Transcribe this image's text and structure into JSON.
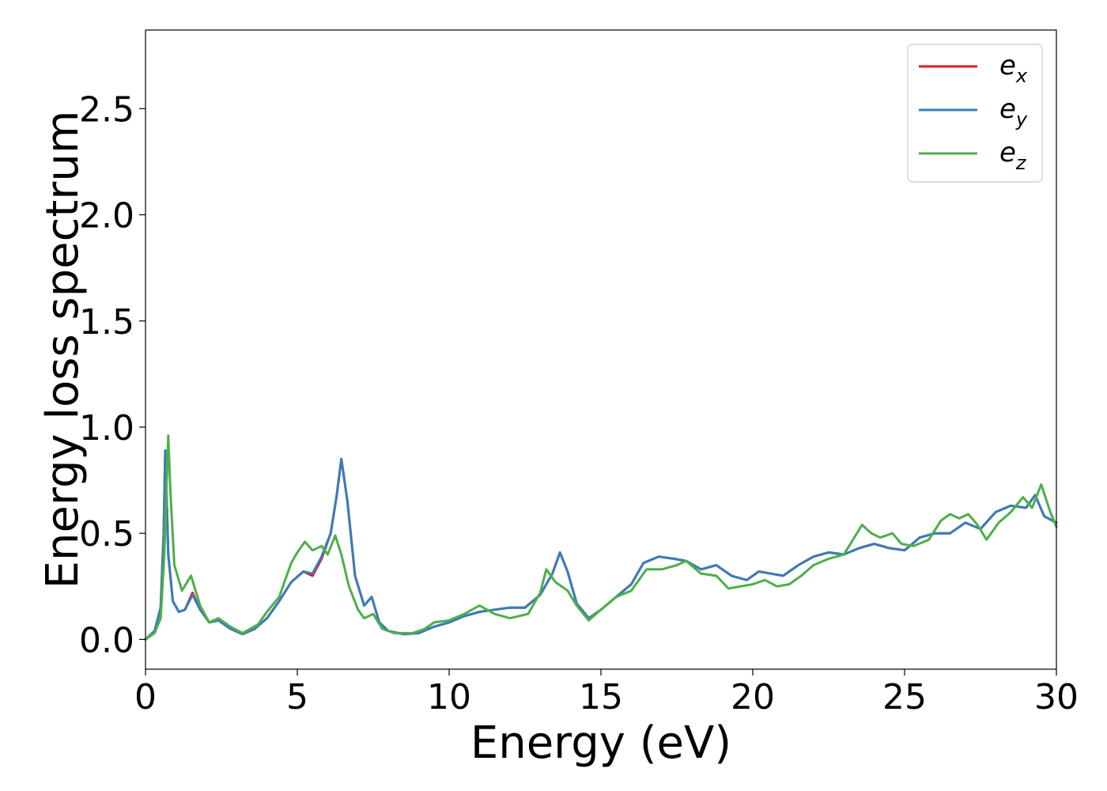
{
  "chart_data": {
    "type": "line",
    "title": "",
    "xlabel": "Energy (eV)",
    "ylabel": "Energy loss spectrum",
    "xlim": [
      0,
      30
    ],
    "ylim": [
      -0.14,
      2.87
    ],
    "xticks": [
      0,
      5,
      10,
      15,
      20,
      25,
      30
    ],
    "xtick_labels": [
      "0",
      "5",
      "10",
      "15",
      "20",
      "25",
      "30"
    ],
    "yticks": [
      0.0,
      0.5,
      1.0,
      1.5,
      2.0,
      2.5
    ],
    "ytick_labels": [
      "0.0",
      "0.5",
      "1.0",
      "1.5",
      "2.0",
      "2.5"
    ],
    "grid": false,
    "legend_position": "top-right",
    "series": [
      {
        "name": "e_x",
        "legend_base": "e",
        "legend_sub": "x",
        "color": "#e41a1c",
        "x": [
          0,
          0.3,
          0.5,
          0.6,
          0.65,
          0.75,
          0.9,
          1.1,
          1.3,
          1.55,
          1.8,
          2.1,
          2.4,
          2.8,
          3.2,
          3.6,
          4.0,
          4.4,
          4.8,
          5.2,
          5.5,
          5.8,
          6.1,
          6.3,
          6.45,
          6.65,
          6.9,
          7.2,
          7.45,
          7.7,
          8.0,
          8.5,
          9.0,
          9.5,
          10.0,
          10.5,
          11.0,
          11.5,
          12.0,
          12.5,
          13.0,
          13.4,
          13.65,
          13.9,
          14.2,
          14.6,
          15.0,
          15.5,
          16.0,
          16.4,
          16.9,
          17.4,
          17.8,
          18.3,
          18.8,
          19.3,
          19.8,
          20.2,
          20.6,
          21.0,
          21.5,
          22.0,
          22.5,
          23.0,
          23.5,
          24.0,
          24.5,
          25.0,
          25.5,
          26.0,
          26.5,
          27.0,
          27.5,
          28.0,
          28.5,
          29.0,
          29.3,
          29.6,
          30.0
        ],
        "y": [
          0.0,
          0.04,
          0.15,
          0.5,
          0.89,
          0.4,
          0.18,
          0.13,
          0.14,
          0.22,
          0.14,
          0.08,
          0.09,
          0.05,
          0.025,
          0.05,
          0.1,
          0.18,
          0.27,
          0.32,
          0.3,
          0.38,
          0.5,
          0.68,
          0.85,
          0.65,
          0.3,
          0.16,
          0.2,
          0.08,
          0.04,
          0.025,
          0.03,
          0.06,
          0.08,
          0.11,
          0.13,
          0.14,
          0.15,
          0.15,
          0.21,
          0.31,
          0.41,
          0.32,
          0.17,
          0.1,
          0.14,
          0.2,
          0.26,
          0.36,
          0.39,
          0.38,
          0.37,
          0.33,
          0.35,
          0.3,
          0.28,
          0.32,
          0.31,
          0.3,
          0.35,
          0.39,
          0.41,
          0.4,
          0.43,
          0.45,
          0.43,
          0.42,
          0.48,
          0.5,
          0.5,
          0.55,
          0.52,
          0.6,
          0.63,
          0.62,
          0.68,
          0.58,
          0.55
        ]
      },
      {
        "name": "e_y",
        "legend_base": "e",
        "legend_sub": "y",
        "color": "#377eb8",
        "x": [
          0,
          0.3,
          0.5,
          0.6,
          0.65,
          0.75,
          0.9,
          1.1,
          1.3,
          1.55,
          1.8,
          2.1,
          2.4,
          2.8,
          3.2,
          3.6,
          4.0,
          4.4,
          4.8,
          5.2,
          5.5,
          5.8,
          6.1,
          6.3,
          6.45,
          6.65,
          6.9,
          7.2,
          7.45,
          7.7,
          8.0,
          8.5,
          9.0,
          9.5,
          10.0,
          10.5,
          11.0,
          11.5,
          12.0,
          12.5,
          13.0,
          13.4,
          13.65,
          13.9,
          14.2,
          14.6,
          15.0,
          15.5,
          16.0,
          16.4,
          16.9,
          17.4,
          17.8,
          18.3,
          18.8,
          19.3,
          19.8,
          20.2,
          20.6,
          21.0,
          21.5,
          22.0,
          22.5,
          23.0,
          23.5,
          24.0,
          24.5,
          25.0,
          25.5,
          26.0,
          26.5,
          27.0,
          27.5,
          28.0,
          28.5,
          29.0,
          29.3,
          29.6,
          30.0
        ],
        "y": [
          0.0,
          0.04,
          0.15,
          0.5,
          0.89,
          0.4,
          0.18,
          0.13,
          0.14,
          0.21,
          0.14,
          0.08,
          0.09,
          0.05,
          0.025,
          0.05,
          0.1,
          0.18,
          0.27,
          0.32,
          0.31,
          0.39,
          0.5,
          0.68,
          0.85,
          0.65,
          0.3,
          0.16,
          0.2,
          0.08,
          0.04,
          0.025,
          0.03,
          0.06,
          0.08,
          0.11,
          0.13,
          0.14,
          0.15,
          0.15,
          0.21,
          0.31,
          0.41,
          0.32,
          0.17,
          0.1,
          0.14,
          0.2,
          0.26,
          0.36,
          0.39,
          0.38,
          0.37,
          0.33,
          0.35,
          0.3,
          0.28,
          0.32,
          0.31,
          0.3,
          0.35,
          0.39,
          0.41,
          0.4,
          0.43,
          0.45,
          0.43,
          0.42,
          0.48,
          0.5,
          0.5,
          0.55,
          0.52,
          0.6,
          0.63,
          0.62,
          0.68,
          0.58,
          0.55
        ]
      },
      {
        "name": "e_z",
        "legend_base": "e",
        "legend_sub": "z",
        "color": "#4daf4a",
        "x": [
          0,
          0.3,
          0.5,
          0.62,
          0.75,
          0.82,
          0.95,
          1.2,
          1.5,
          1.8,
          2.1,
          2.4,
          2.8,
          3.2,
          3.7,
          4.0,
          4.4,
          4.8,
          5.0,
          5.25,
          5.5,
          5.8,
          6.0,
          6.25,
          6.45,
          6.7,
          7.0,
          7.2,
          7.5,
          7.8,
          8.2,
          8.8,
          9.2,
          9.5,
          10.0,
          10.5,
          11.0,
          11.5,
          12.0,
          12.6,
          13.0,
          13.2,
          13.5,
          13.9,
          14.2,
          14.6,
          15.0,
          15.5,
          16.0,
          16.5,
          17.0,
          17.5,
          17.8,
          18.3,
          18.8,
          19.2,
          19.6,
          20.0,
          20.4,
          20.8,
          21.2,
          21.6,
          22.0,
          22.5,
          23.0,
          23.3,
          23.6,
          23.9,
          24.2,
          24.6,
          24.9,
          25.3,
          25.8,
          26.2,
          26.5,
          26.8,
          27.1,
          27.4,
          27.7,
          28.1,
          28.5,
          28.9,
          29.2,
          29.5,
          29.8,
          30.0
        ],
        "y": [
          0.0,
          0.03,
          0.1,
          0.4,
          0.96,
          0.7,
          0.35,
          0.23,
          0.3,
          0.16,
          0.08,
          0.1,
          0.06,
          0.03,
          0.07,
          0.13,
          0.2,
          0.36,
          0.41,
          0.46,
          0.42,
          0.44,
          0.4,
          0.49,
          0.4,
          0.25,
          0.14,
          0.1,
          0.12,
          0.05,
          0.03,
          0.03,
          0.05,
          0.08,
          0.09,
          0.12,
          0.16,
          0.12,
          0.1,
          0.12,
          0.22,
          0.33,
          0.27,
          0.23,
          0.16,
          0.09,
          0.14,
          0.2,
          0.23,
          0.33,
          0.33,
          0.35,
          0.37,
          0.31,
          0.3,
          0.24,
          0.25,
          0.26,
          0.28,
          0.25,
          0.26,
          0.3,
          0.35,
          0.38,
          0.4,
          0.47,
          0.54,
          0.5,
          0.48,
          0.5,
          0.45,
          0.44,
          0.47,
          0.56,
          0.59,
          0.57,
          0.59,
          0.54,
          0.47,
          0.55,
          0.6,
          0.67,
          0.62,
          0.73,
          0.6,
          0.53
        ]
      }
    ]
  }
}
